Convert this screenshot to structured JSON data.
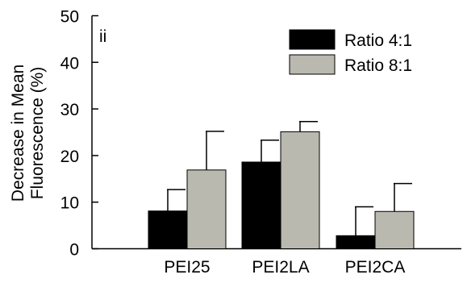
{
  "chart_data": {
    "type": "bar",
    "panel_label": "ii",
    "ylabel_lines": [
      "Decrease in Mean",
      "Fluorescence (%)"
    ],
    "xlabel": "",
    "ylim": [
      0,
      50
    ],
    "yticks": [
      0,
      10,
      20,
      30,
      40,
      50
    ],
    "categories": [
      "PEI25",
      "PEI2LA",
      "PEI2CA"
    ],
    "series": [
      {
        "name": "Ratio 4:1",
        "color": "#000000",
        "values": [
          8.1,
          18.6,
          2.8
        ],
        "errors": [
          4.6,
          4.7,
          6.2
        ]
      },
      {
        "name": "Ratio 8:1",
        "color": "#b9b9b0",
        "values": [
          16.9,
          25.1,
          8.0
        ],
        "errors": [
          8.3,
          2.2,
          6.0
        ]
      }
    ],
    "grid": false,
    "legend_position": "top-right"
  }
}
